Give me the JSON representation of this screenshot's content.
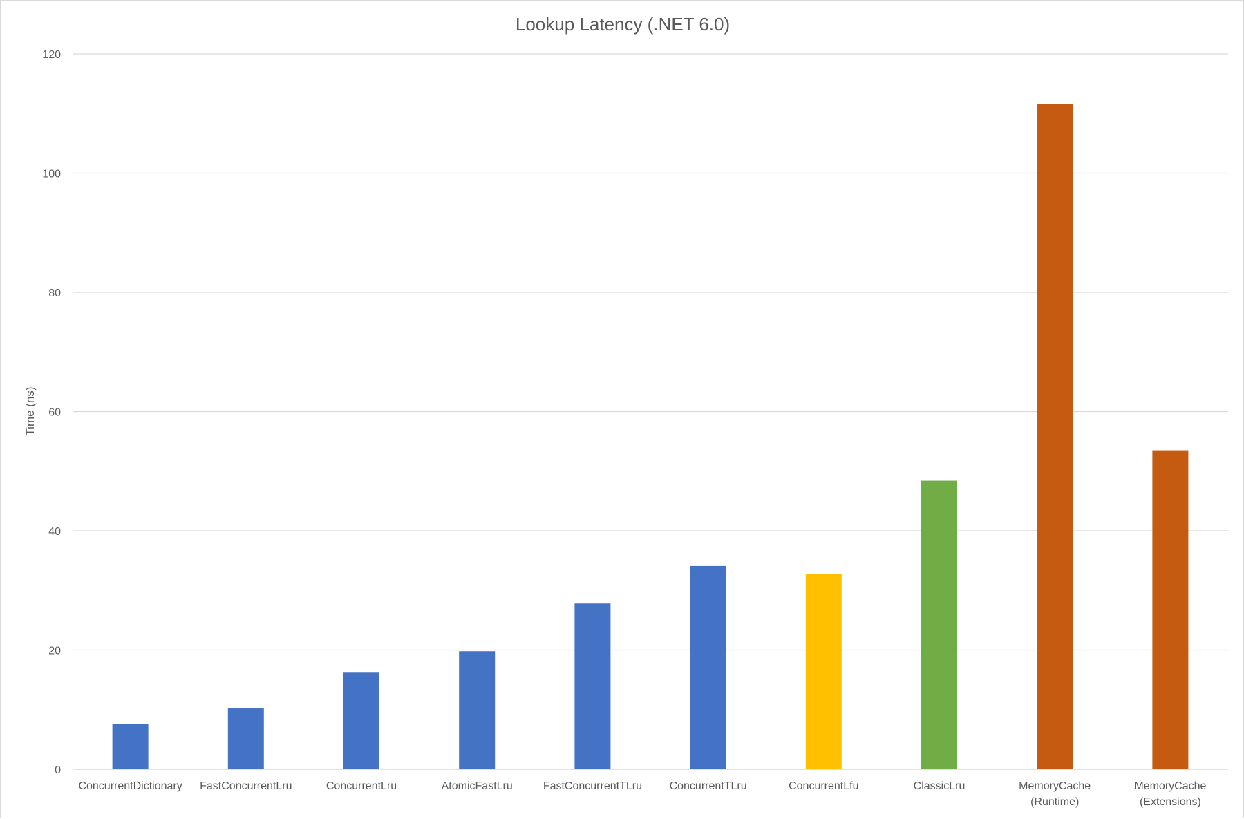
{
  "chart_data": {
    "type": "bar",
    "title": "Lookup Latency (.NET 6.0)",
    "xlabel": "",
    "ylabel": "Time (ns)",
    "ylim": [
      0,
      120
    ],
    "yticks": [
      0,
      20,
      40,
      60,
      80,
      100,
      120
    ],
    "grid": true,
    "legend": "none",
    "categories": [
      [
        "ConcurrentDictionary"
      ],
      [
        "FastConcurrentLru"
      ],
      [
        "ConcurrentLru"
      ],
      [
        "AtomicFastLru"
      ],
      [
        "FastConcurrentTLru"
      ],
      [
        "ConcurrentTLru"
      ],
      [
        "ConcurrentLfu"
      ],
      [
        "ClassicLru"
      ],
      [
        "MemoryCache",
        "(Runtime)"
      ],
      [
        "MemoryCache",
        "(Extensions)"
      ]
    ],
    "values": [
      7.6,
      10.2,
      16.2,
      19.8,
      27.8,
      34.1,
      32.7,
      48.4,
      111.6,
      53.5
    ],
    "colors": [
      "#4472c4",
      "#4472c4",
      "#4472c4",
      "#4472c4",
      "#4472c4",
      "#4472c4",
      "#ffc000",
      "#70ad47",
      "#c55a11",
      "#c55a11"
    ],
    "gridline_color": "#d9d9d9",
    "text_color": "#595959"
  }
}
